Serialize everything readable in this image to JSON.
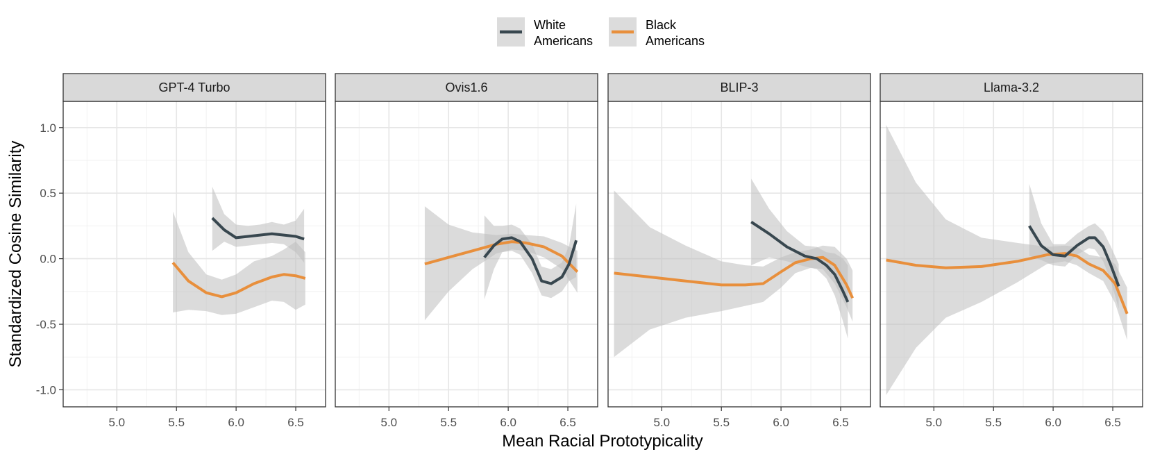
{
  "chart_data": {
    "type": "line",
    "xlabel": "Mean Racial Prototypicality",
    "ylabel": "Standardized Cosine Similarity",
    "xlim": [
      4.55,
      6.75
    ],
    "ylim": [
      -1.13,
      1.2
    ],
    "x_ticks": [
      5.0,
      5.5,
      6.0,
      6.5
    ],
    "x_tick_labels": [
      "5.0",
      "5.5",
      "6.0",
      "6.5"
    ],
    "y_ticks": [
      1.0,
      0.5,
      0.0,
      -0.5,
      -1.0
    ],
    "y_tick_labels": [
      "1.0",
      "0.5",
      "0.0",
      "-0.5",
      "-1.0"
    ],
    "grid": true,
    "legend_position": "top",
    "legend": [
      {
        "key": "white",
        "name": "White Americans",
        "line1": "White",
        "line2": "Americans",
        "color": "#38474f"
      },
      {
        "key": "black",
        "name": "Black Americans",
        "line1": "Black",
        "line2": "Americans",
        "color": "#e88f3c"
      }
    ],
    "ribbon_color": "#bdbdbd",
    "panels": [
      {
        "title": "GPT-4 Turbo",
        "series": [
          {
            "name": "Black Americans",
            "color": "#e88f3c",
            "x": [
              5.47,
              5.6,
              5.75,
              5.88,
              6.0,
              6.15,
              6.3,
              6.4,
              6.5,
              6.58
            ],
            "y": [
              -0.03,
              -0.17,
              -0.26,
              -0.29,
              -0.26,
              -0.19,
              -0.14,
              -0.12,
              -0.13,
              -0.15
            ],
            "lower": [
              -0.41,
              -0.39,
              -0.4,
              -0.43,
              -0.42,
              -0.37,
              -0.32,
              -0.33,
              -0.39,
              -0.35
            ],
            "upper": [
              0.36,
              0.05,
              -0.12,
              -0.16,
              -0.12,
              -0.02,
              0.02,
              0.07,
              0.13,
              0.05
            ]
          },
          {
            "name": "White Americans",
            "color": "#38474f",
            "x": [
              5.8,
              5.9,
              6.0,
              6.1,
              6.2,
              6.3,
              6.4,
              6.5,
              6.57
            ],
            "y": [
              0.31,
              0.22,
              0.16,
              0.17,
              0.18,
              0.19,
              0.18,
              0.17,
              0.15
            ],
            "lower": [
              0.06,
              0.13,
              0.09,
              0.1,
              0.11,
              0.12,
              0.11,
              0.05,
              -0.03
            ],
            "upper": [
              0.55,
              0.34,
              0.26,
              0.25,
              0.26,
              0.28,
              0.26,
              0.29,
              0.38
            ]
          }
        ]
      },
      {
        "title": "Ovis1.6",
        "series": [
          {
            "name": "Black Americans",
            "color": "#e88f3c",
            "x": [
              5.3,
              5.5,
              5.7,
              5.9,
              6.03,
              6.15,
              6.3,
              6.45,
              6.58
            ],
            "y": [
              -0.04,
              0.01,
              0.06,
              0.11,
              0.13,
              0.12,
              0.09,
              0.02,
              -0.1
            ],
            "lower": [
              -0.47,
              -0.25,
              -0.08,
              0.04,
              0.07,
              0.06,
              0.01,
              -0.08,
              -0.26
            ],
            "upper": [
              0.4,
              0.26,
              0.2,
              0.18,
              0.19,
              0.18,
              0.17,
              0.12,
              0.06
            ]
          },
          {
            "name": "White Americans",
            "color": "#38474f",
            "x": [
              5.8,
              5.88,
              5.95,
              6.03,
              6.1,
              6.2,
              6.28,
              6.36,
              6.45,
              6.51,
              6.57
            ],
            "y": [
              0.01,
              0.1,
              0.15,
              0.16,
              0.13,
              0.0,
              -0.17,
              -0.19,
              -0.14,
              -0.04,
              0.14
            ],
            "lower": [
              -0.31,
              -0.08,
              0.05,
              0.06,
              0.03,
              -0.11,
              -0.28,
              -0.3,
              -0.25,
              -0.17,
              -0.14
            ],
            "upper": [
              0.33,
              0.25,
              0.25,
              0.26,
              0.23,
              0.11,
              -0.06,
              -0.08,
              -0.03,
              0.1,
              0.42
            ]
          }
        ]
      },
      {
        "title": "BLIP-3",
        "series": [
          {
            "name": "Black Americans",
            "color": "#e88f3c",
            "x": [
              4.6,
              4.9,
              5.2,
              5.5,
              5.7,
              5.85,
              6.0,
              6.12,
              6.25,
              6.35,
              6.45,
              6.55,
              6.6
            ],
            "y": [
              -0.11,
              -0.14,
              -0.17,
              -0.2,
              -0.2,
              -0.19,
              -0.1,
              -0.03,
              0.0,
              0.01,
              -0.05,
              -0.2,
              -0.3
            ],
            "lower": [
              -0.75,
              -0.54,
              -0.45,
              -0.4,
              -0.36,
              -0.33,
              -0.22,
              -0.11,
              -0.07,
              -0.08,
              -0.19,
              -0.37,
              -0.48
            ],
            "upper": [
              0.52,
              0.24,
              0.1,
              -0.02,
              -0.05,
              -0.06,
              0.01,
              0.05,
              0.07,
              0.1,
              0.09,
              0.0,
              -0.09
            ]
          },
          {
            "name": "White Americans",
            "color": "#38474f",
            "x": [
              5.75,
              5.9,
              6.05,
              6.2,
              6.3,
              6.38,
              6.45,
              6.52,
              6.56
            ],
            "y": [
              0.28,
              0.19,
              0.09,
              0.02,
              0.0,
              -0.05,
              -0.12,
              -0.25,
              -0.33
            ],
            "lower": [
              -0.05,
              0.01,
              -0.02,
              -0.06,
              -0.08,
              -0.15,
              -0.28,
              -0.48,
              -0.61
            ],
            "upper": [
              0.61,
              0.38,
              0.21,
              0.1,
              0.09,
              0.05,
              0.04,
              0.0,
              -0.05
            ]
          }
        ]
      },
      {
        "title": "Llama-3.2",
        "series": [
          {
            "name": "Black Americans",
            "color": "#e88f3c",
            "x": [
              4.6,
              4.85,
              5.1,
              5.4,
              5.7,
              5.95,
              6.1,
              6.2,
              6.3,
              6.42,
              6.52,
              6.62
            ],
            "y": [
              -0.01,
              -0.05,
              -0.07,
              -0.06,
              -0.02,
              0.03,
              0.04,
              0.02,
              -0.04,
              -0.09,
              -0.19,
              -0.42
            ],
            "lower": [
              -1.04,
              -0.68,
              -0.45,
              -0.33,
              -0.18,
              -0.04,
              -0.02,
              -0.05,
              -0.11,
              -0.17,
              -0.34,
              -0.62
            ],
            "upper": [
              1.02,
              0.58,
              0.3,
              0.16,
              0.12,
              0.09,
              0.1,
              0.09,
              0.03,
              0.01,
              -0.04,
              -0.22
            ]
          },
          {
            "name": "White Americans",
            "color": "#38474f",
            "x": [
              5.8,
              5.9,
              6.0,
              6.1,
              6.2,
              6.3,
              6.35,
              6.42,
              6.48,
              6.55
            ],
            "y": [
              0.25,
              0.1,
              0.03,
              0.02,
              0.1,
              0.16,
              0.16,
              0.09,
              -0.04,
              -0.21
            ],
            "lower": [
              0.02,
              -0.01,
              -0.05,
              -0.06,
              0.03,
              0.08,
              0.07,
              -0.02,
              -0.16,
              -0.38
            ],
            "upper": [
              0.57,
              0.27,
              0.11,
              0.11,
              0.19,
              0.25,
              0.27,
              0.21,
              0.1,
              -0.04
            ]
          }
        ]
      }
    ]
  }
}
